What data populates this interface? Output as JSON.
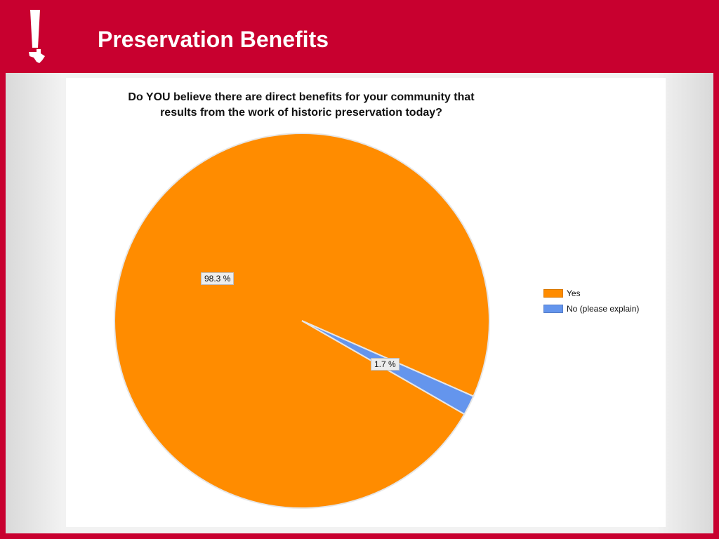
{
  "header": {
    "title": "Preservation Benefits",
    "logo_icon": "exclamation-texas-icon",
    "background_color": "#c8002f"
  },
  "chart_data": {
    "type": "pie",
    "title_lines": [
      "Do YOU believe there are direct benefits for your community that",
      "results from the work of historic preservation today?"
    ],
    "slices": [
      {
        "name": "Yes",
        "value": 98.3,
        "label": "98.3 %",
        "color": "#ff8c00"
      },
      {
        "name": "No (please explain)",
        "value": 1.7,
        "label": "1.7 %",
        "color": "#6495ed"
      }
    ],
    "legend_placement": "right"
  }
}
